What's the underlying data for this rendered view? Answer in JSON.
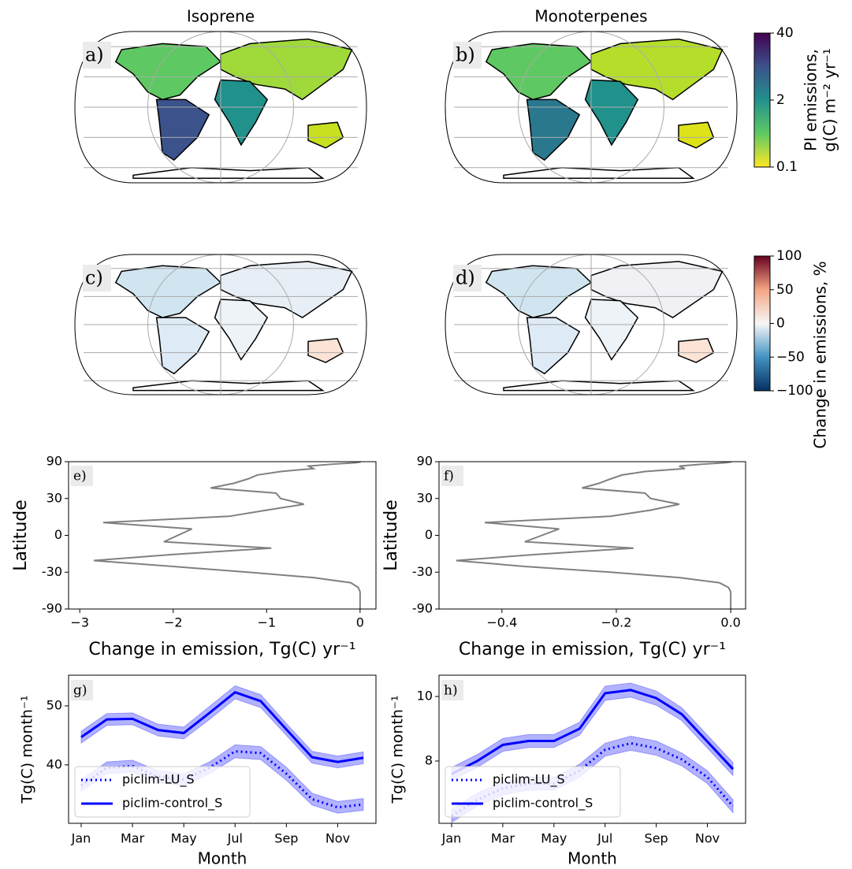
{
  "chart_data": [
    {
      "type": "map",
      "title": "Isoprene",
      "panel": "a)"
    },
    {
      "type": "map",
      "title": "Monoterpenes",
      "panel": "b)"
    },
    {
      "type": "colorbar",
      "label": [
        "PI emissions,",
        "g(C) m⁻² yr⁻¹"
      ],
      "log": true,
      "lim": [
        0.1,
        40
      ],
      "ticks": [
        0.1,
        2,
        40
      ],
      "colors": [
        "#fde725",
        "#5ec962",
        "#21918c",
        "#3b528b",
        "#440154"
      ]
    },
    {
      "type": "map",
      "panel": "c)"
    },
    {
      "type": "map",
      "panel": "d)"
    },
    {
      "type": "colorbar",
      "label": [
        "Change in emissions, %"
      ],
      "log": false,
      "lim": [
        -100,
        100
      ],
      "ticks": [
        {
          "value": -100,
          "label": "−100"
        },
        {
          "value": -50,
          "label": "−50"
        },
        0,
        50,
        100
      ],
      "colors": [
        "#053061",
        "#4393c3",
        "#f7f7f7",
        "#f4a582",
        "#67001f"
      ]
    },
    {
      "type": "profile",
      "panel": "e)",
      "xlabel": "Change in emission, Tg(C) yr⁻¹",
      "ylabel": "Latitude",
      "yscale": "sine",
      "y": [
        90,
        85,
        80,
        75,
        70,
        65,
        60,
        55,
        50,
        45,
        40,
        35,
        30,
        25,
        20,
        15,
        10,
        5,
        0,
        -5,
        -10,
        -15,
        -20,
        -25,
        -30,
        -35,
        -40,
        -45,
        -50,
        -55,
        -60,
        -65,
        -70,
        -75,
        -80,
        -85,
        -90
      ],
      "series": [
        {
          "color": "#808080",
          "values": [
            0,
            0,
            -0.05,
            -0.3,
            -0.55,
            -0.5,
            -0.85,
            -1.1,
            -1.2,
            -1.35,
            -1.6,
            -0.9,
            -0.85,
            -0.6,
            -1.0,
            -1.4,
            -2.75,
            -1.8,
            -1.95,
            -2.1,
            -0.95,
            -2.0,
            -2.85,
            -2.0,
            -1.2,
            -0.5,
            -0.1,
            -0.02,
            0,
            0,
            0,
            0,
            0,
            0,
            0,
            0,
            0
          ]
        }
      ],
      "xlim": [
        -3.12,
        0.17
      ],
      "xticks": [
        {
          "value": -3,
          "label": "−3"
        },
        {
          "value": -2,
          "label": "−2"
        },
        {
          "value": -1,
          "label": "−1"
        },
        0
      ],
      "ylim": [
        -90,
        90
      ],
      "yticks": [
        90,
        30,
        0,
        -30,
        -90
      ]
    },
    {
      "type": "profile",
      "panel": "f)",
      "xlabel": "Change in emission, Tg(C) yr⁻¹",
      "ylabel": "Latitude",
      "yscale": "sine",
      "y": [
        90,
        85,
        80,
        75,
        70,
        65,
        60,
        55,
        50,
        45,
        40,
        35,
        30,
        25,
        20,
        15,
        10,
        5,
        0,
        -5,
        -10,
        -15,
        -20,
        -25,
        -30,
        -35,
        -40,
        -45,
        -50,
        -55,
        -60,
        -65,
        -70,
        -75,
        -80,
        -85,
        -90
      ],
      "series": [
        {
          "color": "#808080",
          "values": [
            0,
            0,
            -0.01,
            -0.05,
            -0.09,
            -0.08,
            -0.15,
            -0.19,
            -0.21,
            -0.23,
            -0.26,
            -0.15,
            -0.14,
            -0.09,
            -0.14,
            -0.21,
            -0.43,
            -0.3,
            -0.33,
            -0.36,
            -0.17,
            -0.34,
            -0.48,
            -0.36,
            -0.21,
            -0.09,
            -0.02,
            -0.004,
            0,
            0,
            0,
            0,
            0,
            0,
            0,
            0,
            0
          ]
        }
      ],
      "xlim": [
        -0.51,
        0.026
      ],
      "xticks": [
        {
          "value": -0.4,
          "label": "−0.4"
        },
        {
          "value": -0.2,
          "label": "−0.2"
        },
        {
          "value": 0,
          "label": "0.0"
        }
      ],
      "ylim": [
        -90,
        90
      ],
      "yticks": [
        90,
        30,
        0,
        -30,
        -90
      ]
    },
    {
      "type": "line",
      "panel": "g)",
      "xlabel": "Month",
      "ylabel": "Tg(C) month⁻¹",
      "legend": "lower left",
      "categories": [
        "Jan",
        null,
        "Mar",
        null,
        "May",
        null,
        "Jul",
        null,
        "Sep",
        null,
        "Nov",
        null
      ],
      "series": [
        {
          "name": "piclim-LU_S",
          "color": "#0000ff",
          "style": "dotted",
          "values": [
            36.5,
            39.5,
            39.8,
            38,
            37.5,
            39.5,
            42.3,
            42,
            38.5,
            34.2,
            32.8,
            33.3
          ],
          "lower": [
            35.5,
            38.5,
            38.8,
            37,
            36.5,
            38.5,
            41.2,
            40.9,
            37.4,
            33.2,
            31.8,
            32.3
          ],
          "upper": [
            37.5,
            40.5,
            40.8,
            39,
            38.5,
            40.5,
            43.4,
            43.1,
            39.6,
            35.2,
            33.8,
            34.3
          ]
        },
        {
          "name": "piclim-control_S",
          "color": "#0000ff",
          "style": "solid",
          "values": [
            44.7,
            47.7,
            47.8,
            45.9,
            45.4,
            48.8,
            52.3,
            50.8,
            46,
            41.3,
            40.5,
            41.2
          ],
          "lower": [
            43.7,
            46.7,
            46.8,
            44.9,
            44.4,
            47.7,
            51.2,
            49.7,
            45,
            40.3,
            39.5,
            40.2
          ],
          "upper": [
            45.7,
            48.7,
            48.8,
            46.9,
            46.4,
            49.9,
            53.4,
            51.9,
            47,
            42.3,
            41.5,
            42.2
          ]
        }
      ],
      "ylim": [
        30.1,
        55.2
      ],
      "yticks": [
        40,
        50
      ]
    },
    {
      "type": "line",
      "panel": "h)",
      "xlabel": "Month",
      "ylabel": "Tg(C) month⁻¹",
      "legend": "lower left",
      "categories": [
        "Jan",
        null,
        "Mar",
        null,
        "May",
        null,
        "Jul",
        null,
        "Sep",
        null,
        "Nov",
        null
      ],
      "series": [
        {
          "name": "piclim-LU_S",
          "color": "#0000ff",
          "style": "dotted",
          "values": [
            6.3,
            6.8,
            7.15,
            7.3,
            7.3,
            7.7,
            8.35,
            8.55,
            8.4,
            8.05,
            7.5,
            6.6
          ],
          "lower": [
            6.1,
            6.6,
            6.95,
            7.1,
            7.1,
            7.5,
            8.15,
            8.33,
            8.18,
            7.85,
            7.3,
            6.4
          ],
          "upper": [
            6.5,
            7.0,
            7.35,
            7.5,
            7.5,
            7.9,
            8.55,
            8.77,
            8.62,
            8.25,
            7.7,
            6.8
          ]
        },
        {
          "name": "piclim-control_S",
          "color": "#0000ff",
          "style": "solid",
          "values": [
            7.6,
            8.0,
            8.5,
            8.62,
            8.62,
            9.0,
            10.1,
            10.2,
            9.95,
            9.45,
            8.6,
            7.75
          ],
          "lower": [
            7.4,
            7.8,
            8.3,
            8.42,
            8.42,
            8.8,
            9.88,
            9.98,
            9.73,
            9.25,
            8.4,
            7.55
          ],
          "upper": [
            7.8,
            8.2,
            8.7,
            8.82,
            8.82,
            9.2,
            10.32,
            10.42,
            10.17,
            9.65,
            8.8,
            7.95
          ]
        }
      ],
      "ylim": [
        6.07,
        10.66
      ],
      "yticks": [
        8,
        10
      ]
    }
  ]
}
